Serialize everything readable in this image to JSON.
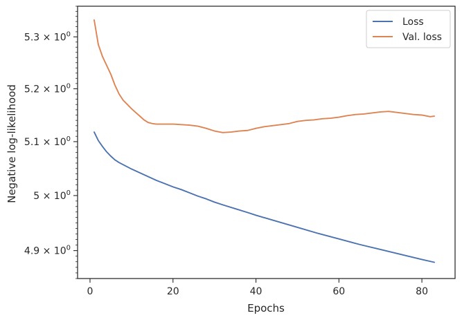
{
  "chart_data": {
    "type": "line",
    "xlabel": "Epochs",
    "ylabel": "Negative log-likelihood",
    "xlim": [
      -3,
      88
    ],
    "ylim": [
      4.85,
      5.36
    ],
    "y_scale": "log",
    "grid": false,
    "legend_position": "top-right",
    "x_ticks": [
      0,
      20,
      40,
      60,
      80
    ],
    "y_ticks": [
      {
        "value": 4.9,
        "base": "4.9",
        "mult": "×",
        "ten": "10",
        "exp": "0"
      },
      {
        "value": 5.0,
        "base": "5",
        "mult": "×",
        "ten": "10",
        "exp": "0"
      },
      {
        "value": 5.1,
        "base": "5.1",
        "mult": "×",
        "ten": "10",
        "exp": "0"
      },
      {
        "value": 5.2,
        "base": "5.2",
        "mult": "×",
        "ten": "10",
        "exp": "0"
      },
      {
        "value": 5.3,
        "base": "5.3",
        "mult": "×",
        "ten": "10",
        "exp": "0"
      }
    ],
    "series": [
      {
        "name": "Loss",
        "color": "#4c72b0",
        "x": [
          1,
          2,
          3,
          4,
          5,
          6,
          7,
          8,
          9,
          10,
          12,
          14,
          16,
          18,
          20,
          22,
          24,
          26,
          28,
          30,
          32,
          35,
          38,
          40,
          45,
          50,
          55,
          60,
          65,
          70,
          75,
          80,
          83
        ],
        "y": [
          5.118,
          5.102,
          5.091,
          5.081,
          5.073,
          5.066,
          5.061,
          5.057,
          5.053,
          5.049,
          5.042,
          5.035,
          5.028,
          5.022,
          5.016,
          5.011,
          5.005,
          4.999,
          4.994,
          4.988,
          4.983,
          4.976,
          4.969,
          4.964,
          4.953,
          4.942,
          4.931,
          4.921,
          4.911,
          4.902,
          4.893,
          4.884,
          4.879
        ]
      },
      {
        "name": "Val. loss",
        "color": "#dd8452",
        "x": [
          1,
          2,
          3,
          4,
          5,
          6,
          7,
          8,
          9,
          10,
          11,
          12,
          13,
          14,
          15,
          16,
          18,
          20,
          22,
          24,
          26,
          28,
          30,
          32,
          34,
          36,
          38,
          40,
          42,
          44,
          46,
          48,
          50,
          52,
          54,
          56,
          58,
          60,
          62,
          64,
          66,
          68,
          70,
          72,
          74,
          76,
          78,
          80,
          82,
          83
        ],
        "y": [
          5.333,
          5.285,
          5.262,
          5.245,
          5.228,
          5.207,
          5.19,
          5.178,
          5.17,
          5.162,
          5.155,
          5.148,
          5.141,
          5.136,
          5.134,
          5.133,
          5.133,
          5.133,
          5.132,
          5.131,
          5.129,
          5.125,
          5.12,
          5.117,
          5.118,
          5.12,
          5.121,
          5.125,
          5.128,
          5.13,
          5.132,
          5.134,
          5.138,
          5.14,
          5.141,
          5.143,
          5.144,
          5.146,
          5.149,
          5.151,
          5.152,
          5.154,
          5.156,
          5.157,
          5.155,
          5.153,
          5.151,
          5.15,
          5.147,
          5.148
        ]
      }
    ]
  }
}
